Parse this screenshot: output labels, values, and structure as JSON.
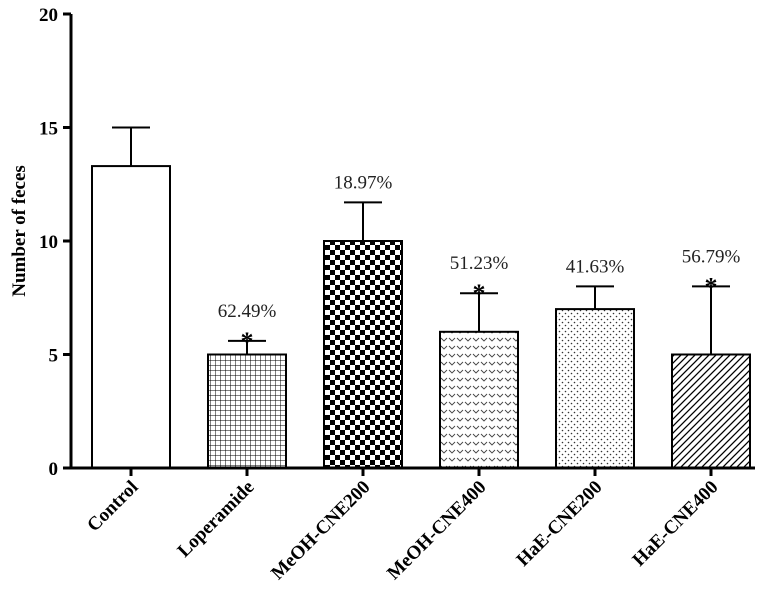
{
  "chart_data": {
    "type": "bar",
    "ylabel": "Number of feces",
    "xlabel": "",
    "ylim": [
      0,
      20
    ],
    "yticks": [
      0,
      5,
      10,
      15,
      20
    ],
    "grid": false,
    "categories": [
      "Control",
      "Loperamide",
      "MeOH-CNE200",
      "MeOH-CNE400",
      "HaE-CNE200",
      "HaE-CNE400"
    ],
    "values": [
      13.3,
      5.0,
      10.0,
      6.0,
      7.0,
      5.0
    ],
    "error_upper": [
      15.0,
      5.6,
      11.7,
      7.7,
      8.0,
      8.0
    ],
    "annotations": [
      "",
      "62.49%",
      "18.97%",
      "51.23%",
      "41.63%",
      "56.79%"
    ],
    "significance": [
      "",
      "*",
      "",
      "*",
      "",
      "*"
    ],
    "fills": [
      "white",
      "grid",
      "checker",
      "chevron",
      "dots",
      "diagonal"
    ]
  }
}
